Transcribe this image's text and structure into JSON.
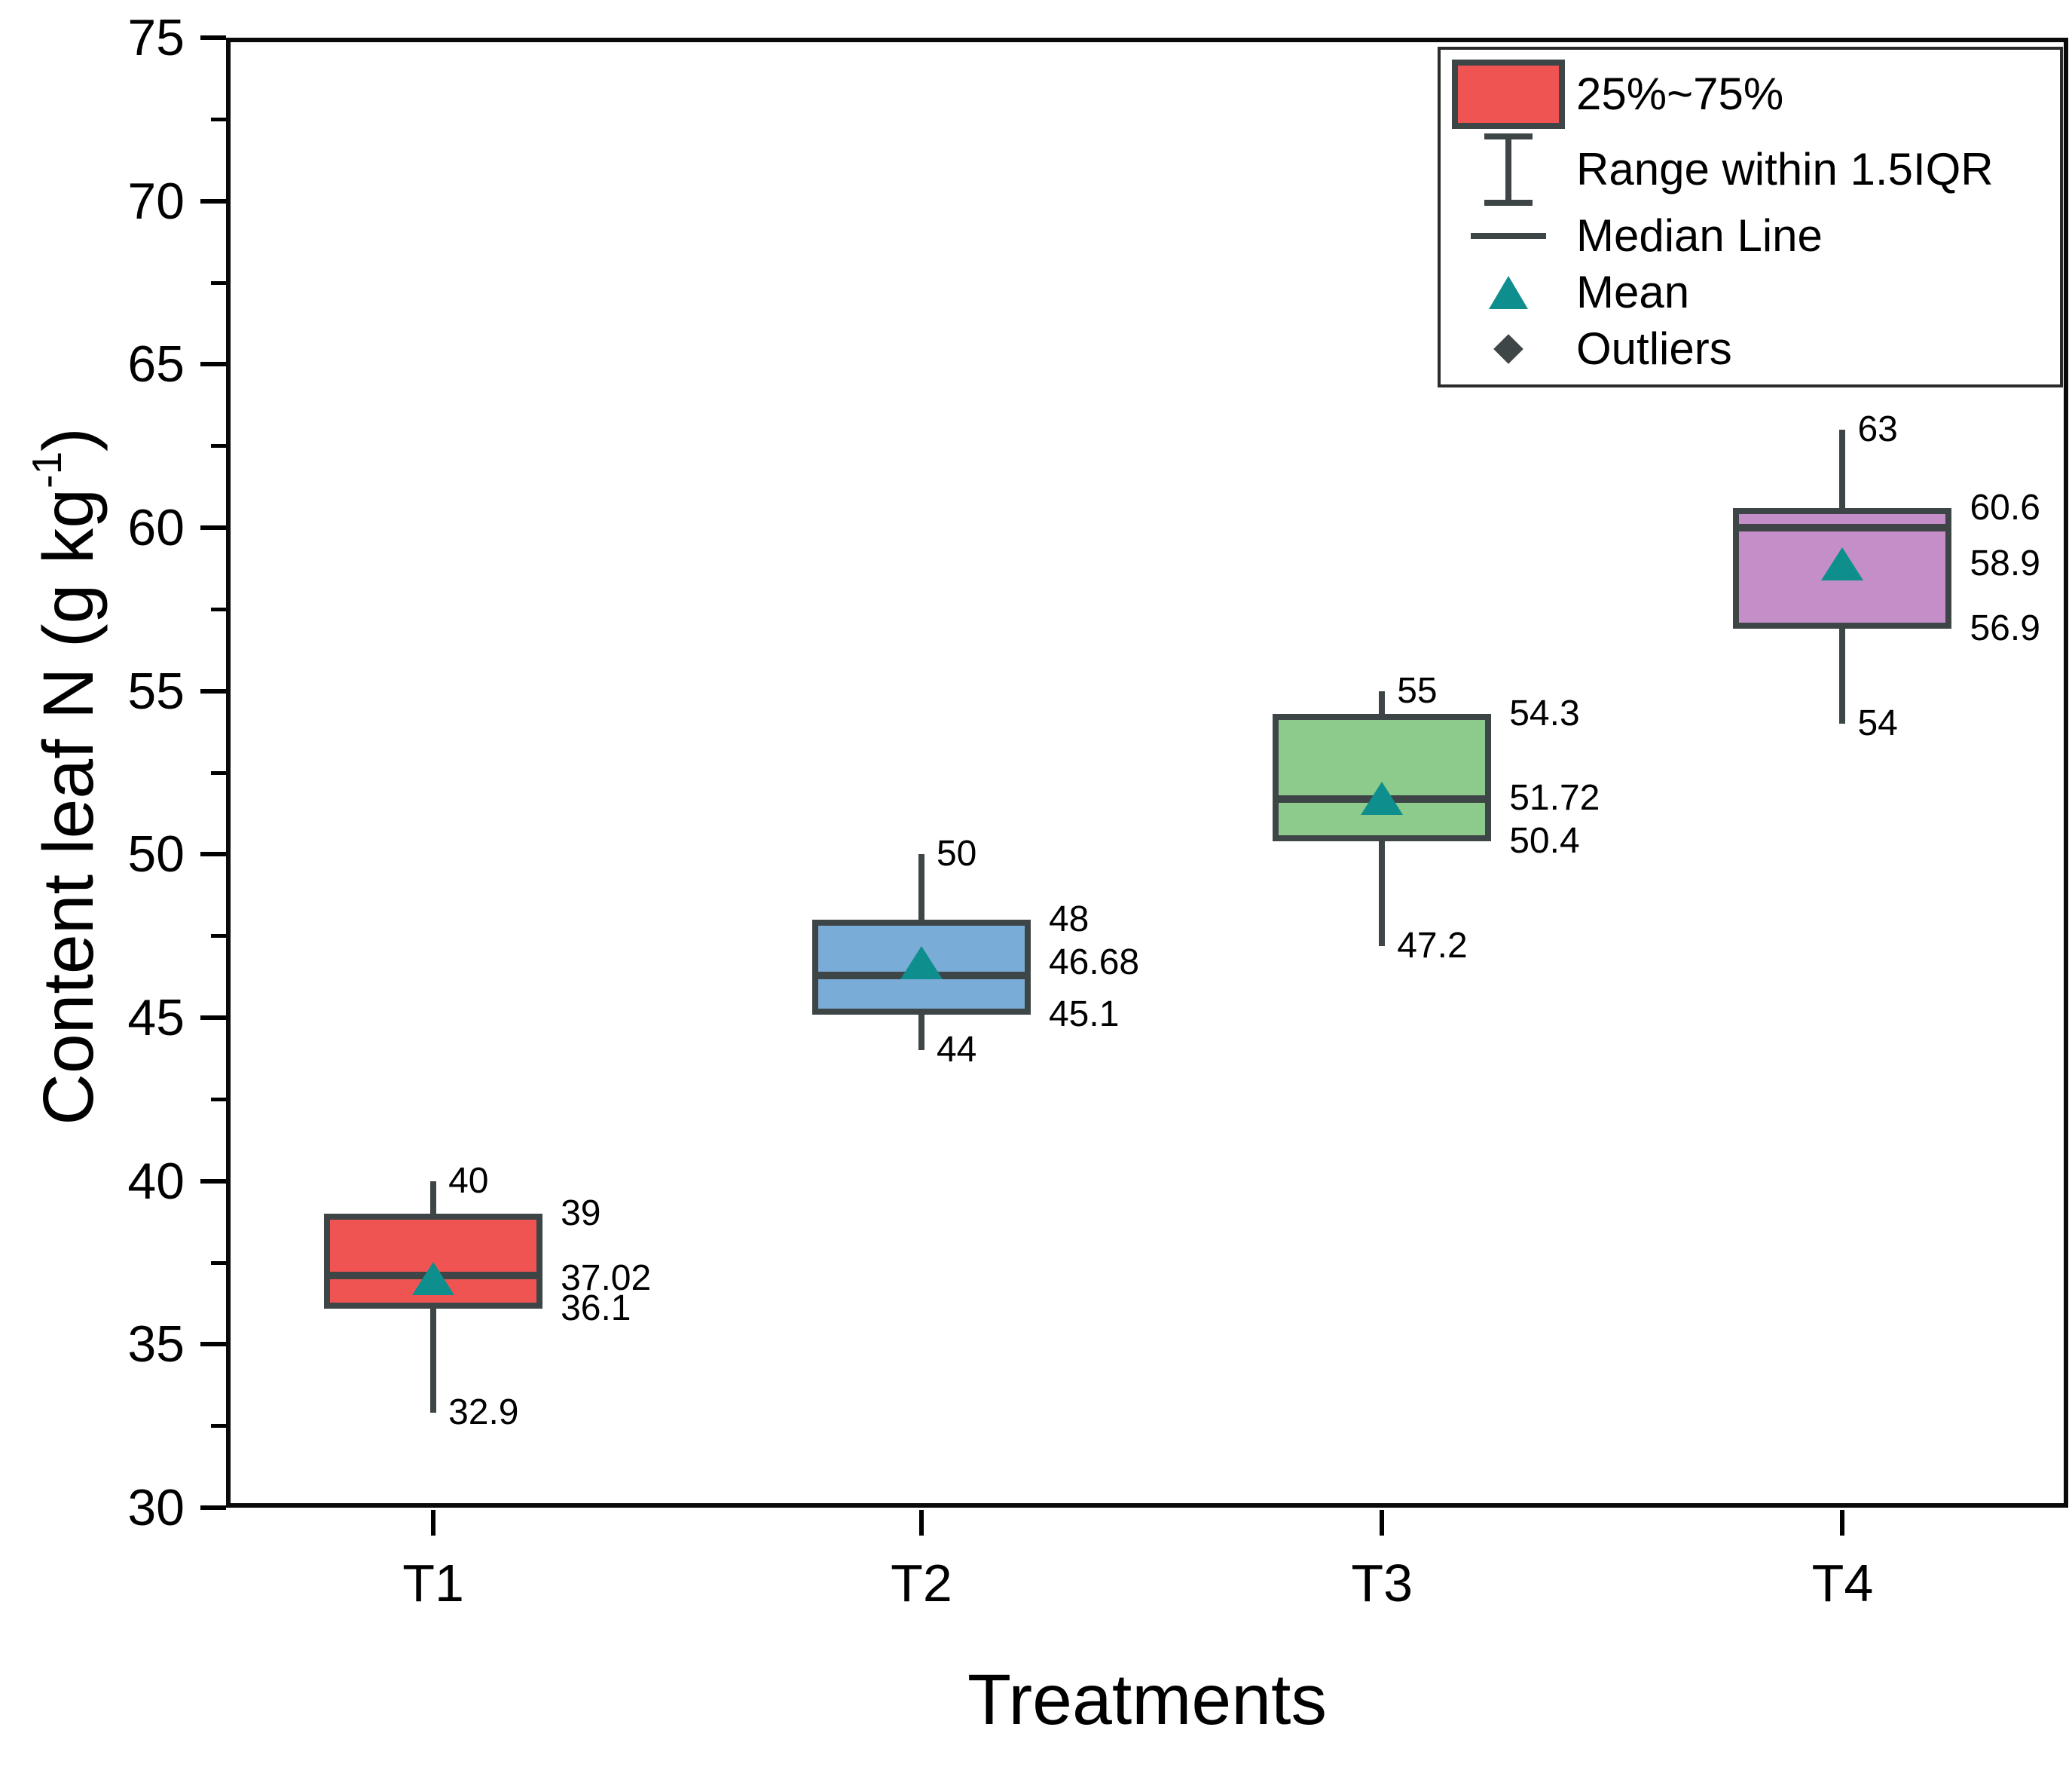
{
  "chart_data": {
    "type": "box",
    "title": "",
    "xlabel": "Treatments",
    "ylabel": {
      "prefix": "Content leaf N (g kg",
      "sup": "-1",
      "suffix": ")"
    },
    "ylim": [
      30,
      75
    ],
    "yticks": [
      30,
      35,
      40,
      45,
      50,
      55,
      60,
      65,
      70,
      75
    ],
    "yticks_minor": [
      32.5,
      37.5,
      42.5,
      47.5,
      52.5,
      57.5,
      62.5,
      67.5,
      72.5
    ],
    "categories": [
      "T1",
      "T2",
      "T3",
      "T4"
    ],
    "grid": false,
    "legend": {
      "position": "top-right",
      "items": [
        {
          "icon": "box-swatch-icon",
          "label": "25%~75%"
        },
        {
          "icon": "range-whisker-icon",
          "label": "Range within 1.5IQR"
        },
        {
          "icon": "median-line-icon",
          "label": "Median Line"
        },
        {
          "icon": "mean-triangle-icon",
          "label": "Mean"
        },
        {
          "icon": "outlier-diamond-icon",
          "label": "Outliers"
        }
      ]
    },
    "colors": {
      "box_stroke": "#3E4547",
      "mean_marker": "#0E8E8C",
      "outlier_marker": "#3F4648",
      "axis": "#000000",
      "background": "#FFFFFF"
    },
    "boxes": [
      {
        "category": "T1",
        "fill": "#F05452",
        "center_frac": 0.1125,
        "whisker_low": 32.9,
        "q1": 36.1,
        "median": 37.1,
        "q3": 39,
        "whisker_high": 40,
        "mean": 37.02,
        "labels": [
          {
            "text": "40",
            "value": 40,
            "anchor": "whisker"
          },
          {
            "text": "39",
            "value": 39,
            "anchor": "box"
          },
          {
            "text": "37.02",
            "value": 37.02,
            "anchor": "box"
          },
          {
            "text": "36.1",
            "value": 36.1,
            "anchor": "box"
          },
          {
            "text": "32.9",
            "value": 32.9,
            "anchor": "whisker"
          }
        ]
      },
      {
        "category": "T2",
        "fill": "#7AACD8",
        "center_frac": 0.3775,
        "whisker_low": 44,
        "q1": 45.1,
        "median": 46.3,
        "q3": 48,
        "whisker_high": 50,
        "mean": 46.68,
        "labels": [
          {
            "text": "50",
            "value": 50,
            "anchor": "whisker"
          },
          {
            "text": "48",
            "value": 48,
            "anchor": "box"
          },
          {
            "text": "46.68",
            "value": 46.68,
            "anchor": "box"
          },
          {
            "text": "45.1",
            "value": 45.1,
            "anchor": "box"
          },
          {
            "text": "44",
            "value": 44,
            "anchor": "whisker"
          }
        ]
      },
      {
        "category": "T3",
        "fill": "#8CCB8B",
        "center_frac": 0.6275,
        "whisker_low": 47.2,
        "q1": 50.4,
        "median": 51.7,
        "q3": 54.3,
        "whisker_high": 55,
        "mean": 51.72,
        "labels": [
          {
            "text": "55",
            "value": 55,
            "anchor": "whisker"
          },
          {
            "text": "54.3",
            "value": 54.3,
            "anchor": "box"
          },
          {
            "text": "51.72",
            "value": 51.72,
            "anchor": "box"
          },
          {
            "text": "50.4",
            "value": 50.4,
            "anchor": "box"
          },
          {
            "text": "47.2",
            "value": 47.2,
            "anchor": "whisker"
          }
        ]
      },
      {
        "category": "T4",
        "fill": "#C48FC9",
        "center_frac": 0.8775,
        "whisker_low": 54,
        "q1": 56.9,
        "median": 60,
        "q3": 60.6,
        "whisker_high": 63,
        "mean": 58.9,
        "labels": [
          {
            "text": "63",
            "value": 63,
            "anchor": "whisker"
          },
          {
            "text": "60.6",
            "value": 60.6,
            "anchor": "box"
          },
          {
            "text": "58.9",
            "value": 58.9,
            "anchor": "box"
          },
          {
            "text": "56.9",
            "value": 56.9,
            "anchor": "box"
          },
          {
            "text": "54",
            "value": 54,
            "anchor": "whisker"
          }
        ]
      }
    ]
  }
}
